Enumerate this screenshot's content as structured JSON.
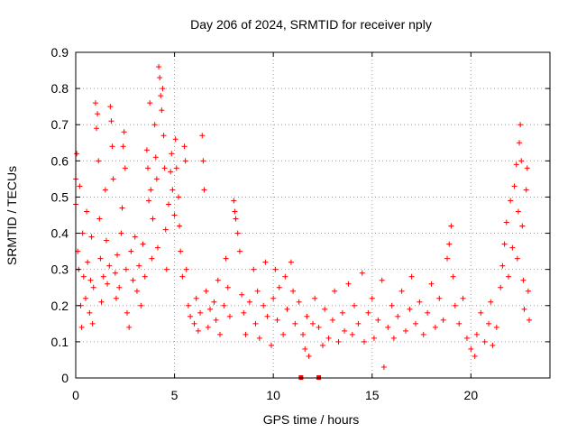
{
  "chart_data": {
    "type": "scatter",
    "title": "Day 206 of 2024, SRMTID for receiver nply",
    "xlabel": "GPS time / hours",
    "ylabel": "SRMTID / TECUs",
    "xlim": [
      0,
      24
    ],
    "ylim": [
      0,
      0.9
    ],
    "x_ticks": [
      0,
      5,
      10,
      15,
      20
    ],
    "x_tick_labels": [
      "0",
      "5",
      "10",
      "15",
      "20"
    ],
    "y_ticks": [
      0,
      0.1,
      0.2,
      0.3,
      0.4,
      0.5,
      0.6,
      0.7,
      0.8,
      0.9
    ],
    "y_tick_labels": [
      "0",
      "0.1",
      "0.2",
      "0.3",
      "0.4",
      "0.5",
      "0.6",
      "0.7",
      "0.8",
      "0.9"
    ],
    "grid": true,
    "marker": "+",
    "color": "#ff0000",
    "series": [
      {
        "name": "SRMTID",
        "points": [
          [
            0.0,
            0.48
          ],
          [
            0.0,
            0.55
          ],
          [
            0.05,
            0.62
          ],
          [
            0.1,
            0.35
          ],
          [
            0.15,
            0.3
          ],
          [
            0.2,
            0.53
          ],
          [
            0.25,
            0.2
          ],
          [
            0.3,
            0.14
          ],
          [
            0.35,
            0.4
          ],
          [
            0.4,
            0.28
          ],
          [
            0.5,
            0.22
          ],
          [
            0.55,
            0.46
          ],
          [
            0.6,
            0.32
          ],
          [
            0.7,
            0.18
          ],
          [
            0.75,
            0.27
          ],
          [
            0.8,
            0.39
          ],
          [
            0.85,
            0.15
          ],
          [
            0.9,
            0.25
          ],
          [
            1.0,
            0.76
          ],
          [
            1.05,
            0.69
          ],
          [
            1.1,
            0.73
          ],
          [
            1.15,
            0.6
          ],
          [
            1.2,
            0.44
          ],
          [
            1.25,
            0.33
          ],
          [
            1.3,
            0.21
          ],
          [
            1.4,
            0.28
          ],
          [
            1.5,
            0.52
          ],
          [
            1.55,
            0.38
          ],
          [
            1.6,
            0.26
          ],
          [
            1.7,
            0.31
          ],
          [
            1.75,
            0.75
          ],
          [
            1.8,
            0.71
          ],
          [
            1.85,
            0.64
          ],
          [
            1.9,
            0.55
          ],
          [
            2.0,
            0.29
          ],
          [
            2.05,
            0.22
          ],
          [
            2.1,
            0.34
          ],
          [
            2.2,
            0.25
          ],
          [
            2.3,
            0.4
          ],
          [
            2.35,
            0.47
          ],
          [
            2.4,
            0.64
          ],
          [
            2.45,
            0.68
          ],
          [
            2.5,
            0.58
          ],
          [
            2.55,
            0.3
          ],
          [
            2.6,
            0.18
          ],
          [
            2.7,
            0.14
          ],
          [
            2.8,
            0.35
          ],
          [
            2.9,
            0.27
          ],
          [
            3.0,
            0.39
          ],
          [
            3.1,
            0.24
          ],
          [
            3.2,
            0.31
          ],
          [
            3.3,
            0.2
          ],
          [
            3.4,
            0.37
          ],
          [
            3.5,
            0.28
          ],
          [
            3.6,
            0.63
          ],
          [
            3.65,
            0.58
          ],
          [
            3.7,
            0.49
          ],
          [
            3.75,
            0.76
          ],
          [
            3.8,
            0.52
          ],
          [
            3.85,
            0.33
          ],
          [
            3.9,
            0.44
          ],
          [
            4.0,
            0.7
          ],
          [
            4.05,
            0.61
          ],
          [
            4.1,
            0.55
          ],
          [
            4.15,
            0.36
          ],
          [
            4.2,
            0.86
          ],
          [
            4.25,
            0.83
          ],
          [
            4.3,
            0.78
          ],
          [
            4.35,
            0.74
          ],
          [
            4.4,
            0.8
          ],
          [
            4.45,
            0.67
          ],
          [
            4.5,
            0.58
          ],
          [
            4.55,
            0.41
          ],
          [
            4.6,
            0.3
          ],
          [
            4.7,
            0.48
          ],
          [
            4.8,
            0.57
          ],
          [
            4.85,
            0.62
          ],
          [
            4.9,
            0.52
          ],
          [
            5.0,
            0.45
          ],
          [
            5.05,
            0.66
          ],
          [
            5.1,
            0.58
          ],
          [
            5.2,
            0.5
          ],
          [
            5.25,
            0.42
          ],
          [
            5.3,
            0.35
          ],
          [
            5.4,
            0.28
          ],
          [
            5.5,
            0.64
          ],
          [
            5.55,
            0.6
          ],
          [
            5.6,
            0.3
          ],
          [
            5.7,
            0.2
          ],
          [
            5.8,
            0.17
          ],
          [
            6.0,
            0.15
          ],
          [
            6.1,
            0.22
          ],
          [
            6.2,
            0.13
          ],
          [
            6.3,
            0.18
          ],
          [
            6.4,
            0.67
          ],
          [
            6.45,
            0.6
          ],
          [
            6.5,
            0.52
          ],
          [
            6.6,
            0.24
          ],
          [
            6.7,
            0.14
          ],
          [
            6.8,
            0.19
          ],
          [
            7.0,
            0.21
          ],
          [
            7.1,
            0.16
          ],
          [
            7.2,
            0.27
          ],
          [
            7.3,
            0.12
          ],
          [
            7.5,
            0.2
          ],
          [
            7.6,
            0.33
          ],
          [
            7.7,
            0.25
          ],
          [
            7.8,
            0.17
          ],
          [
            8.0,
            0.49
          ],
          [
            8.05,
            0.46
          ],
          [
            8.1,
            0.44
          ],
          [
            8.2,
            0.4
          ],
          [
            8.3,
            0.35
          ],
          [
            8.4,
            0.23
          ],
          [
            8.5,
            0.18
          ],
          [
            8.6,
            0.12
          ],
          [
            8.8,
            0.21
          ],
          [
            9.0,
            0.3
          ],
          [
            9.1,
            0.15
          ],
          [
            9.2,
            0.24
          ],
          [
            9.3,
            0.11
          ],
          [
            9.5,
            0.2
          ],
          [
            9.6,
            0.32
          ],
          [
            9.7,
            0.17
          ],
          [
            9.9,
            0.09
          ],
          [
            10.0,
            0.22
          ],
          [
            10.1,
            0.3
          ],
          [
            10.2,
            0.16
          ],
          [
            10.3,
            0.25
          ],
          [
            10.5,
            0.12
          ],
          [
            10.6,
            0.28
          ],
          [
            10.7,
            0.19
          ],
          [
            10.9,
            0.32
          ],
          [
            11.0,
            0.24
          ],
          [
            11.1,
            0.15
          ],
          [
            11.3,
            0.21
          ],
          [
            11.5,
            0.12
          ],
          [
            11.6,
            0.08
          ],
          [
            11.7,
            0.17
          ],
          [
            11.8,
            0.06
          ],
          [
            12.0,
            0.15
          ],
          [
            12.1,
            0.22
          ],
          [
            12.3,
            0.14
          ],
          [
            12.5,
            0.09
          ],
          [
            12.6,
            0.19
          ],
          [
            12.8,
            0.11
          ],
          [
            13.0,
            0.16
          ],
          [
            13.1,
            0.24
          ],
          [
            13.3,
            0.1
          ],
          [
            13.5,
            0.18
          ],
          [
            13.6,
            0.13
          ],
          [
            13.8,
            0.26
          ],
          [
            14.0,
            0.12
          ],
          [
            14.1,
            0.2
          ],
          [
            14.3,
            0.15
          ],
          [
            14.5,
            0.29
          ],
          [
            14.6,
            0.1
          ],
          [
            14.8,
            0.18
          ],
          [
            15.0,
            0.22
          ],
          [
            15.1,
            0.11
          ],
          [
            15.3,
            0.16
          ],
          [
            15.5,
            0.27
          ],
          [
            15.6,
            0.03
          ],
          [
            15.8,
            0.14
          ],
          [
            16.0,
            0.2
          ],
          [
            16.1,
            0.11
          ],
          [
            16.3,
            0.17
          ],
          [
            16.5,
            0.24
          ],
          [
            16.7,
            0.13
          ],
          [
            16.9,
            0.19
          ],
          [
            17.0,
            0.28
          ],
          [
            17.2,
            0.15
          ],
          [
            17.4,
            0.21
          ],
          [
            17.6,
            0.12
          ],
          [
            17.8,
            0.18
          ],
          [
            18.0,
            0.26
          ],
          [
            18.2,
            0.14
          ],
          [
            18.4,
            0.22
          ],
          [
            18.6,
            0.16
          ],
          [
            18.8,
            0.33
          ],
          [
            18.9,
            0.37
          ],
          [
            19.0,
            0.42
          ],
          [
            19.1,
            0.28
          ],
          [
            19.2,
            0.2
          ],
          [
            19.4,
            0.15
          ],
          [
            19.6,
            0.22
          ],
          [
            19.8,
            0.11
          ],
          [
            20.0,
            0.08
          ],
          [
            20.2,
            0.06
          ],
          [
            20.3,
            0.12
          ],
          [
            20.5,
            0.18
          ],
          [
            20.7,
            0.1
          ],
          [
            20.9,
            0.15
          ],
          [
            21.0,
            0.21
          ],
          [
            21.1,
            0.09
          ],
          [
            21.3,
            0.14
          ],
          [
            21.5,
            0.25
          ],
          [
            21.6,
            0.31
          ],
          [
            21.7,
            0.37
          ],
          [
            21.8,
            0.43
          ],
          [
            21.9,
            0.28
          ],
          [
            22.0,
            0.49
          ],
          [
            22.1,
            0.36
          ],
          [
            22.2,
            0.53
          ],
          [
            22.3,
            0.59
          ],
          [
            22.35,
            0.33
          ],
          [
            22.4,
            0.46
          ],
          [
            22.45,
            0.65
          ],
          [
            22.5,
            0.7
          ],
          [
            22.55,
            0.6
          ],
          [
            22.6,
            0.42
          ],
          [
            22.65,
            0.27
          ],
          [
            22.7,
            0.19
          ],
          [
            22.8,
            0.52
          ],
          [
            22.85,
            0.58
          ],
          [
            22.9,
            0.24
          ],
          [
            22.95,
            0.16
          ]
        ]
      }
    ],
    "gap_markers_x": [
      11.4,
      12.3
    ]
  }
}
